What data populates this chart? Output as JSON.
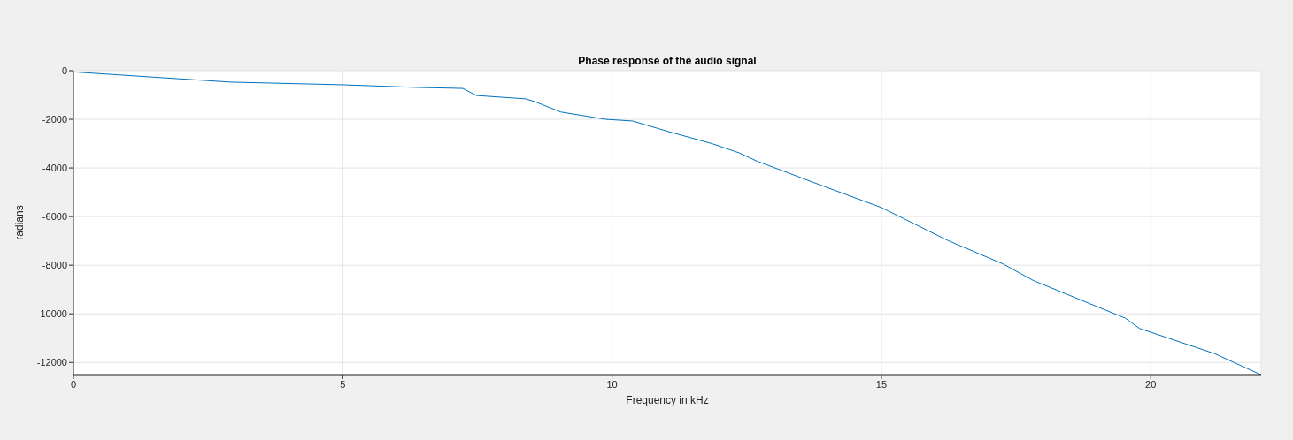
{
  "chart_data": {
    "type": "line",
    "title": "Phase response of the audio signal",
    "xlabel": "Frequency in kHz",
    "ylabel": "radians",
    "x": [
      0,
      1.94,
      2.43,
      2.93,
      5.0,
      6.4,
      7.23,
      7.48,
      8.4,
      8.56,
      9.05,
      9.88,
      10.38,
      11.04,
      11.87,
      12.36,
      12.69,
      13.84,
      15.0,
      16.24,
      17.26,
      17.83,
      19.53,
      19.79,
      21.19,
      21.97,
      22.05
    ],
    "series": [
      {
        "color": "#0072bd",
        "values": [
          -50,
          -330,
          -400,
          -470,
          -580,
          -690,
          -730,
          -1020,
          -1160,
          -1270,
          -1700,
          -2000,
          -2070,
          -2500,
          -3010,
          -3380,
          -3720,
          -4680,
          -5630,
          -6990,
          -7950,
          -8640,
          -10180,
          -10600,
          -11640,
          -12430,
          -12500
        ]
      }
    ],
    "xlim": [
      0,
      22.05
    ],
    "xticks": [
      0,
      5,
      10,
      15,
      20
    ],
    "ylim": [
      -12500,
      0
    ],
    "yticks": [
      -12000,
      -10000,
      -8000,
      -6000,
      -4000,
      -2000,
      0
    ],
    "grid": true,
    "marker": "none",
    "line_style": "solid"
  }
}
